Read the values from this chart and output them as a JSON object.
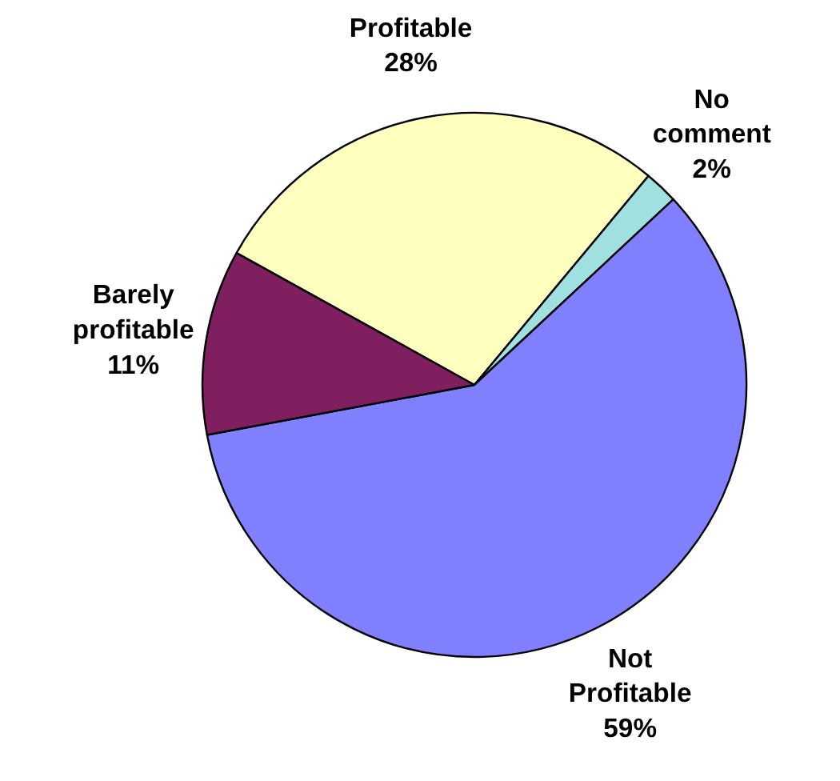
{
  "chart_data": {
    "type": "pie",
    "categories": [
      "Profitable",
      "No comment",
      "Not Profitable",
      "Barely profitable"
    ],
    "values": [
      28,
      2,
      59,
      11
    ],
    "value_labels": [
      "28%",
      "2%",
      "59%",
      "11%"
    ],
    "colors": [
      "#ffffc0",
      "#a0e0e0",
      "#8080ff",
      "#7f1f5f"
    ]
  }
}
